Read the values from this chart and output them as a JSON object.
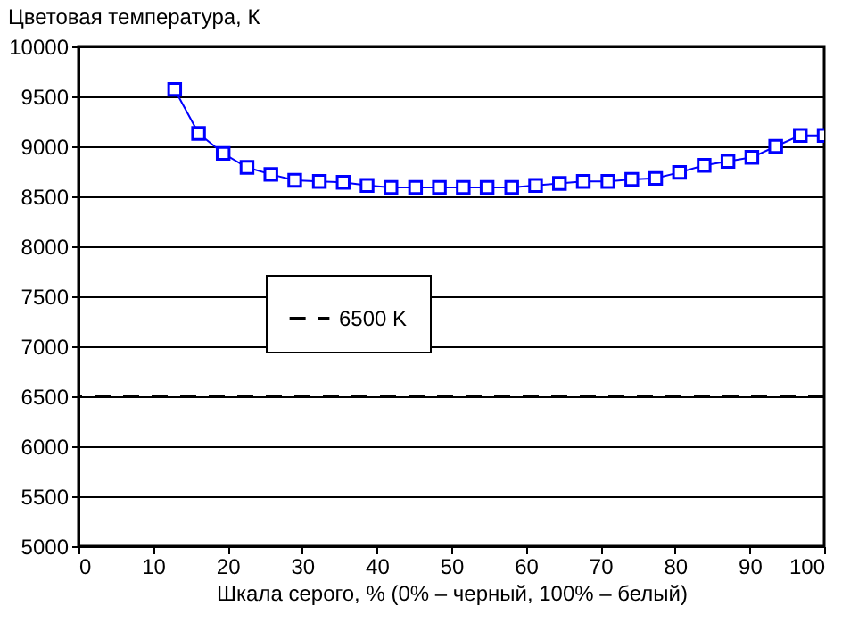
{
  "chart_data": {
    "type": "line",
    "ylabel": "Цветовая температура, К",
    "xlabel": "Шкала серого, % (0% – черный, 100% – белый)",
    "x": [
      12.9,
      16.1,
      19.4,
      22.6,
      25.8,
      29.0,
      32.3,
      35.5,
      38.7,
      41.9,
      45.2,
      48.4,
      51.6,
      54.8,
      58.1,
      61.3,
      64.5,
      67.7,
      71.0,
      74.2,
      77.4,
      80.6,
      83.9,
      87.1,
      90.3,
      93.5,
      96.8,
      100
    ],
    "series": [
      {
        "color": "#0000ff",
        "values": [
          9570,
          9130,
          8930,
          8790,
          8720,
          8660,
          8650,
          8640,
          8610,
          8590,
          8590,
          8590,
          8590,
          8590,
          8590,
          8610,
          8630,
          8650,
          8650,
          8670,
          8680,
          8740,
          8810,
          8850,
          8890,
          9000,
          9110,
          9110
        ]
      }
    ],
    "xlim": [
      0,
      100
    ],
    "xticks": [
      0,
      10,
      20,
      30,
      40,
      50,
      60,
      70,
      80,
      90,
      100
    ],
    "ylim": [
      5000,
      10000
    ],
    "yticks": [
      5000,
      5500,
      6000,
      6500,
      7000,
      7500,
      8000,
      8500,
      9000,
      9500,
      10000
    ],
    "ref_lines": [
      {
        "axis": "y",
        "value": 6500,
        "label": "6500 K",
        "color": "#000000",
        "line_style": "dashed"
      }
    ],
    "grid": "y",
    "legend": "left",
    "marker": "square",
    "line_style": "solid"
  }
}
